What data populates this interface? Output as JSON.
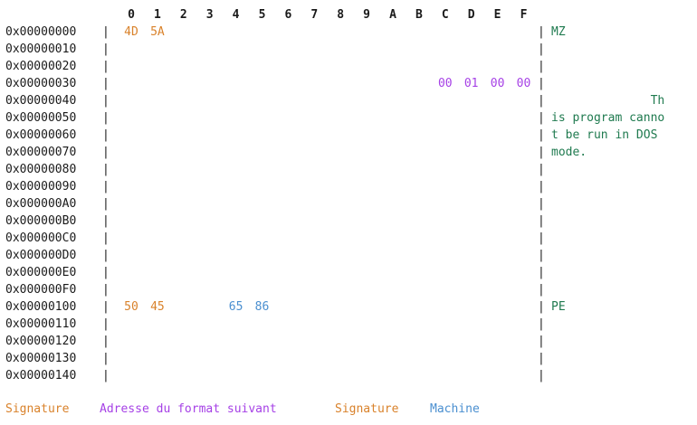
{
  "colors": {
    "signature": "#d9822b",
    "next_format_address": "#a641e6",
    "machine": "#4a8fd0",
    "ascii": "#1f7a4f",
    "text": "#1a1a1a"
  },
  "hex_view": {
    "column_headers": [
      "0",
      "1",
      "2",
      "3",
      "4",
      "5",
      "6",
      "7",
      "8",
      "9",
      "A",
      "B",
      "C",
      "D",
      "E",
      "F"
    ],
    "separator": "|",
    "rows": [
      {
        "address": "0x00000000",
        "bytes": [
          {
            "col": 0,
            "value": "4D",
            "kind": "signature"
          },
          {
            "col": 1,
            "value": "5A",
            "kind": "signature"
          }
        ],
        "ascii": "MZ"
      },
      {
        "address": "0x00000010",
        "bytes": [],
        "ascii": ""
      },
      {
        "address": "0x00000020",
        "bytes": [],
        "ascii": ""
      },
      {
        "address": "0x00000030",
        "bytes": [
          {
            "col": 12,
            "value": "00",
            "kind": "next_format_address"
          },
          {
            "col": 13,
            "value": "01",
            "kind": "next_format_address"
          },
          {
            "col": 14,
            "value": "00",
            "kind": "next_format_address"
          },
          {
            "col": 15,
            "value": "00",
            "kind": "next_format_address"
          }
        ],
        "ascii": ""
      },
      {
        "address": "0x00000040",
        "bytes": [],
        "ascii": "              Th"
      },
      {
        "address": "0x00000050",
        "bytes": [],
        "ascii": "is program canno"
      },
      {
        "address": "0x00000060",
        "bytes": [],
        "ascii": "t be run in DOS "
      },
      {
        "address": "0x00000070",
        "bytes": [],
        "ascii": "mode."
      },
      {
        "address": "0x00000080",
        "bytes": [],
        "ascii": ""
      },
      {
        "address": "0x00000090",
        "bytes": [],
        "ascii": ""
      },
      {
        "address": "0x000000A0",
        "bytes": [],
        "ascii": ""
      },
      {
        "address": "0x000000B0",
        "bytes": [],
        "ascii": ""
      },
      {
        "address": "0x000000C0",
        "bytes": [],
        "ascii": ""
      },
      {
        "address": "0x000000D0",
        "bytes": [],
        "ascii": ""
      },
      {
        "address": "0x000000E0",
        "bytes": [],
        "ascii": ""
      },
      {
        "address": "0x000000F0",
        "bytes": [],
        "ascii": ""
      },
      {
        "address": "0x00000100",
        "bytes": [
          {
            "col": 0,
            "value": "50",
            "kind": "signature"
          },
          {
            "col": 1,
            "value": "45",
            "kind": "signature"
          },
          {
            "col": 4,
            "value": "65",
            "kind": "machine"
          },
          {
            "col": 5,
            "value": "86",
            "kind": "machine"
          }
        ],
        "ascii": "PE"
      },
      {
        "address": "0x00000110",
        "bytes": [],
        "ascii": ""
      },
      {
        "address": "0x00000120",
        "bytes": [],
        "ascii": ""
      },
      {
        "address": "0x00000130",
        "bytes": [],
        "ascii": ""
      },
      {
        "address": "0x00000140",
        "bytes": [],
        "ascii": ""
      }
    ]
  },
  "legend": [
    {
      "label": "Signature",
      "kind": "signature"
    },
    {
      "label": "Adresse du format suivant",
      "kind": "next_format_address"
    },
    {
      "label": "Signature",
      "kind": "signature"
    },
    {
      "label": "Machine",
      "kind": "machine"
    }
  ]
}
